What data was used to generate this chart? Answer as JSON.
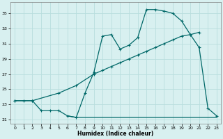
{
  "xlabel": "Humidex (Indice chaleur)",
  "bg_color": "#d8f0f0",
  "grid_color": "#b8dede",
  "line_color": "#006868",
  "xlim": [
    -0.5,
    23.5
  ],
  "ylim": [
    20.5,
    36.5
  ],
  "yticks": [
    21,
    23,
    25,
    27,
    29,
    31,
    33,
    35
  ],
  "xticks": [
    0,
    1,
    2,
    3,
    4,
    5,
    6,
    7,
    8,
    9,
    10,
    11,
    12,
    13,
    14,
    15,
    16,
    17,
    18,
    19,
    20,
    21,
    22,
    23
  ],
  "jagged_x": [
    0,
    1,
    2,
    3,
    4,
    5,
    6,
    7,
    8,
    9,
    10,
    11,
    12,
    13,
    14,
    15,
    16,
    17,
    18,
    19,
    20,
    21,
    22,
    23
  ],
  "jagged_y": [
    23.5,
    23.5,
    23.5,
    22.2,
    22.2,
    22.2,
    21.5,
    21.3,
    24.5,
    27.2,
    32.0,
    32.2,
    30.3,
    30.8,
    31.8,
    35.5,
    35.5,
    35.3,
    35.0,
    34.0,
    32.2,
    30.5,
    22.5,
    21.5
  ],
  "diagonal_x": [
    0,
    2,
    5,
    7,
    9,
    10,
    11,
    12,
    13,
    14,
    15,
    16,
    17,
    18,
    19,
    20,
    21
  ],
  "diagonal_y": [
    23.5,
    23.5,
    24.5,
    25.5,
    27.0,
    27.5,
    28.0,
    28.5,
    29.0,
    29.5,
    30.0,
    30.5,
    31.0,
    31.5,
    32.0,
    32.2,
    32.5
  ],
  "flat_x": [
    6,
    7,
    8,
    9,
    10,
    11,
    12,
    13,
    14,
    15,
    16,
    17,
    18,
    19,
    20,
    21,
    22,
    23
  ],
  "flat_y": [
    21.5,
    21.3,
    21.3,
    21.3,
    21.3,
    21.3,
    21.3,
    21.3,
    21.3,
    21.3,
    21.3,
    21.3,
    21.3,
    21.3,
    21.3,
    21.3,
    21.3,
    21.3
  ]
}
